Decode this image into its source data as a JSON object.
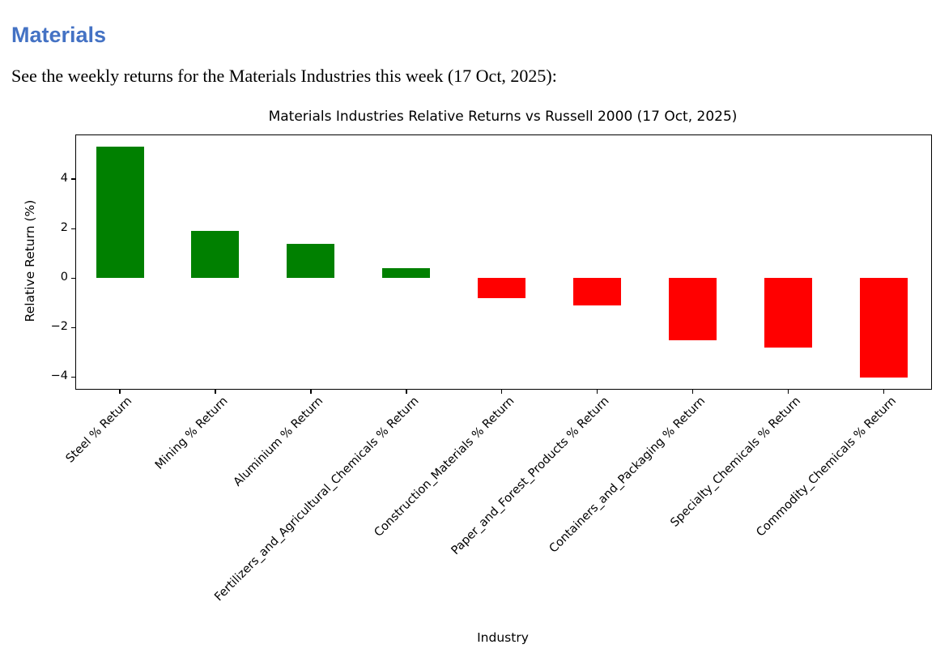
{
  "page": {
    "heading": "Materials",
    "heading_color": "#4472c4",
    "intro": "See the weekly returns for the Materials Industries this week (17 Oct, 2025):"
  },
  "chart_data": {
    "type": "bar",
    "title": "Materials Industries Relative Returns vs Russell 2000 (17 Oct, 2025)",
    "xlabel": "Industry",
    "ylabel": "Relative Return (%)",
    "categories": [
      "Steel % Return",
      "Mining % Return",
      "Aluminium % Return",
      "Fertilizers_and_Agricultural_Chemicals % Return",
      "Construction_Materials % Return",
      "Paper_and_Forest_Products % Return",
      "Containers_and_Packaging % Return",
      "Specialty_Chemicals % Return",
      "Commodity_Chemicals % Return"
    ],
    "values": [
      5.3,
      1.9,
      1.4,
      0.4,
      -0.8,
      -1.1,
      -2.5,
      -2.8,
      -4.0
    ],
    "yticks": [
      {
        "value": 4,
        "label": "4"
      },
      {
        "value": 2,
        "label": "2"
      },
      {
        "value": 0,
        "label": "0"
      },
      {
        "value": -2,
        "label": "−2"
      },
      {
        "value": -4,
        "label": "−4"
      }
    ],
    "ylim": [
      -4.47,
      5.77
    ],
    "positive_color": "#008000",
    "negative_color": "#ff0000",
    "grid": false,
    "legend": false,
    "x_tick_rotation_deg": 45
  }
}
